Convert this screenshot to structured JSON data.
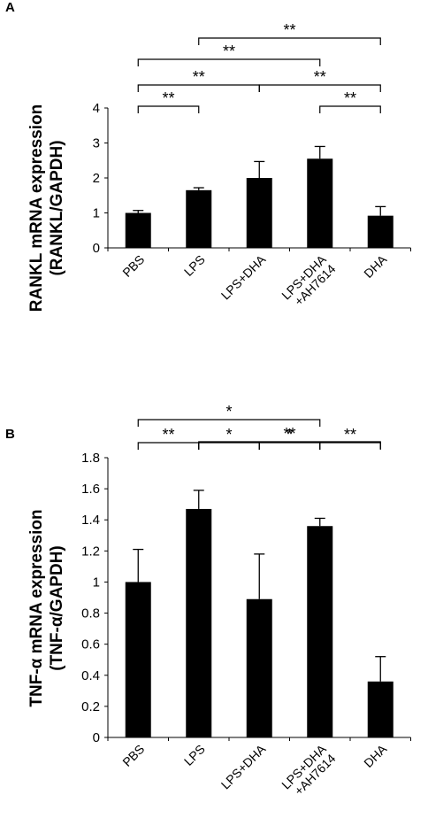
{
  "chart_data": [
    {
      "panel_label": "A",
      "type": "bar",
      "categories": [
        "PBS",
        "LPS",
        "LPS+DHA",
        "LPS+DHA\n+AH7614",
        "DHA"
      ],
      "values": [
        1.0,
        1.65,
        2.0,
        2.55,
        0.92
      ],
      "errors": [
        0.07,
        0.07,
        0.47,
        0.35,
        0.26
      ],
      "ylabel_line1": "RANKL mRNA expression",
      "ylabel_line2": "(RANKL/GAPDH)",
      "ylim": [
        0,
        4
      ],
      "yticks": [
        "0",
        "1",
        "2",
        "3",
        "4"
      ],
      "ytick_values": [
        0,
        1,
        2,
        3,
        4
      ],
      "significance": [
        {
          "from": 1,
          "to": 4,
          "label": "**"
        },
        {
          "from": 0,
          "to": 3,
          "label": "**"
        },
        {
          "from": 0,
          "to": 2,
          "label": "**"
        },
        {
          "from": 2,
          "to": 4,
          "label": "**"
        },
        {
          "from": 0,
          "to": 1,
          "label": "**"
        },
        {
          "from": 3,
          "to": 4,
          "label": "**"
        }
      ],
      "bar_color": "#000000",
      "grid": false,
      "legend": "none"
    },
    {
      "panel_label": "B",
      "type": "bar",
      "categories": [
        "PBS",
        "LPS",
        "LPS+DHA",
        "LPS+DHA\n+AH7614",
        "DHA"
      ],
      "values": [
        1.0,
        1.47,
        0.89,
        1.36,
        0.36
      ],
      "errors": [
        0.21,
        0.12,
        0.29,
        0.05,
        0.16
      ],
      "ylabel_line1": "TNF-α mRNA expression",
      "ylabel_line2": "(TNF-α/GAPDH)",
      "ylim": [
        0,
        1.8
      ],
      "yticks": [
        "0",
        "0.2",
        "0.4",
        "0.6",
        "0.8",
        "1",
        "1.2",
        "1.4",
        "1.6",
        "1.8"
      ],
      "ytick_values": [
        0,
        0.2,
        0.4,
        0.6,
        0.8,
        1.0,
        1.2,
        1.4,
        1.6,
        1.8
      ],
      "significance": [
        {
          "from": 0,
          "to": 3,
          "label": "*"
        },
        {
          "from": 1,
          "to": 4,
          "label": "**"
        },
        {
          "from": 0,
          "to": 1,
          "label": "**"
        },
        {
          "from": 1,
          "to": 2,
          "label": "*"
        },
        {
          "from": 2,
          "to": 3,
          "label": "*"
        },
        {
          "from": 3,
          "to": 4,
          "label": "**"
        }
      ],
      "bar_color": "#000000",
      "grid": false,
      "legend": "none"
    }
  ]
}
